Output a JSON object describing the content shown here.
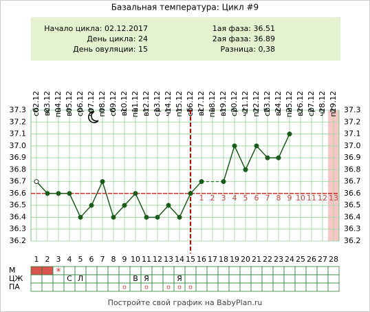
{
  "chart_data": {
    "type": "line",
    "title": "Базальная температура: Цикл #9",
    "info_left": [
      "Начало цикла: 02.12.2017",
      "День цикла: 24",
      "День овуляции: 15"
    ],
    "info_right": [
      "1ая фаза: 36.51",
      "2ая фаза: 36.89",
      "Разница: 0,38"
    ],
    "categories": [
      1,
      2,
      3,
      4,
      5,
      6,
      7,
      8,
      9,
      10,
      11,
      12,
      13,
      14,
      15,
      16,
      17,
      18,
      19,
      20,
      21,
      22,
      23,
      24,
      25,
      26,
      27,
      28
    ],
    "dates": [
      "02.12",
      "03.12",
      "04.12",
      "05.12",
      "06.12",
      "07.12",
      "08.12",
      "09.12",
      "10.12",
      "11.12",
      "12.12",
      "13.12",
      "14.12",
      "15.12",
      "16.12",
      "17.12",
      "18.12",
      "19.12",
      "20.12",
      "21.12",
      "22.12",
      "23.12",
      "24.12",
      "25.12",
      "26.12",
      "27.12",
      "28.12",
      "29.12"
    ],
    "weekdays": [
      "сб",
      "вс",
      "пн",
      "вт",
      "ср",
      "чт",
      "пт",
      "сб",
      "вс",
      "пн",
      "вт",
      "ср",
      "чт",
      "пт",
      "сб",
      "вс",
      "пн",
      "вт",
      "ср",
      "чт",
      "пт",
      "сб",
      "вс",
      "пн",
      "вт",
      "ср",
      "чт",
      "пт"
    ],
    "series": [
      {
        "name": "Температура",
        "color": "#1a5c1a",
        "values": [
          36.7,
          36.6,
          36.6,
          36.6,
          36.4,
          36.5,
          36.7,
          36.4,
          36.5,
          36.6,
          36.4,
          36.4,
          36.5,
          36.4,
          36.6,
          36.7,
          null,
          36.7,
          37.0,
          36.8,
          37.0,
          36.9,
          36.9,
          37.1,
          null,
          null,
          null,
          null
        ]
      }
    ],
    "hollow_points": [
      1
    ],
    "coverline": 36.6,
    "ovulation_day": 15,
    "highlight_days": [
      28
    ],
    "phase2_days": [
      1,
      2,
      3,
      4,
      5,
      6,
      7,
      8,
      9,
      10,
      11,
      12,
      13
    ],
    "ylim": [
      36.2,
      37.3
    ],
    "yticks": [
      36.2,
      36.3,
      36.4,
      36.5,
      36.6,
      36.7,
      36.8,
      36.9,
      {
        "value": 37,
        "label": "37.0"
      },
      37.1,
      37.2,
      37.3
    ],
    "grid": true,
    "table_rows": [
      {
        "label": "М",
        "cells": [
          null,
          null,
          "*",
          null,
          null,
          null,
          null,
          null,
          null,
          null,
          null,
          null,
          null,
          null,
          null,
          null,
          null,
          null,
          null,
          null,
          null,
          null,
          null,
          null,
          null,
          null,
          null,
          null
        ]
      },
      {
        "label": "ЦЖ",
        "cells": [
          null,
          null,
          null,
          "С",
          "Л",
          null,
          null,
          null,
          null,
          "В",
          "Я",
          null,
          null,
          "Я",
          null,
          null,
          null,
          null,
          null,
          null,
          null,
          null,
          null,
          null,
          null,
          null,
          null,
          null
        ]
      },
      {
        "label": "ПА",
        "cells": [
          null,
          null,
          null,
          null,
          null,
          null,
          null,
          null,
          "o",
          null,
          "o",
          null,
          "o",
          "o",
          "o",
          null,
          null,
          null,
          null,
          null,
          null,
          null,
          null,
          null,
          null,
          null,
          null,
          null
        ]
      }
    ],
    "menstruation_days": [
      1,
      2
    ],
    "footer": "Постройте свой график на BabyPlan.ru"
  }
}
